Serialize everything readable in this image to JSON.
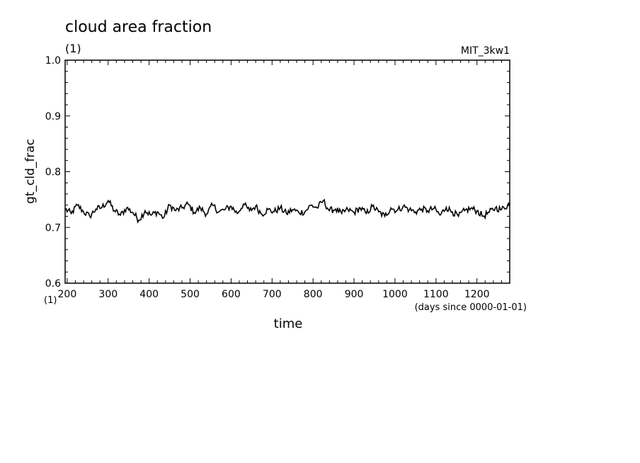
{
  "chart_data": {
    "type": "line",
    "title": "cloud area fraction",
    "units_label": "(1)",
    "dataset_label": "MIT_3kw1",
    "ylabel": "gt_cld_frac",
    "xlabel": "time",
    "x_units": "(days since 0000-01-01)",
    "x_units_short": "(1)",
    "xlim": [
      195,
      1280
    ],
    "ylim": [
      0.6,
      1.0
    ],
    "x_ticks": [
      200,
      300,
      400,
      500,
      600,
      700,
      800,
      900,
      1000,
      1100,
      1200
    ],
    "y_ticks": [
      0.6,
      0.7,
      0.8,
      0.9,
      1.0
    ],
    "y_tick_labels": [
      "0.6",
      "0.7",
      "0.8",
      "0.9",
      "1.0"
    ],
    "grid": false,
    "line_color": "#000000",
    "series": [
      {
        "x": [
          195,
          210,
          225,
          240,
          255,
          270,
          285,
          300,
          315,
          330,
          345,
          360,
          375,
          390,
          405,
          420,
          435,
          450,
          465,
          480,
          495,
          510,
          525,
          540,
          555,
          570,
          585,
          600,
          615,
          630,
          645,
          660,
          675,
          690,
          705,
          720,
          735,
          750,
          765,
          780,
          795,
          810,
          825,
          840,
          855,
          870,
          885,
          900,
          915,
          930,
          945,
          960,
          975,
          990,
          1005,
          1020,
          1035,
          1050,
          1065,
          1080,
          1095,
          1110,
          1125,
          1140,
          1155,
          1170,
          1185,
          1200,
          1215,
          1230,
          1245,
          1260,
          1275,
          1280
        ],
        "y": [
          0.733,
          0.725,
          0.74,
          0.728,
          0.72,
          0.733,
          0.736,
          0.748,
          0.73,
          0.722,
          0.735,
          0.727,
          0.713,
          0.73,
          0.722,
          0.728,
          0.717,
          0.74,
          0.73,
          0.735,
          0.742,
          0.727,
          0.735,
          0.724,
          0.74,
          0.728,
          0.732,
          0.738,
          0.725,
          0.742,
          0.73,
          0.738,
          0.724,
          0.732,
          0.728,
          0.735,
          0.725,
          0.732,
          0.727,
          0.728,
          0.74,
          0.735,
          0.748,
          0.73,
          0.733,
          0.725,
          0.732,
          0.727,
          0.735,
          0.725,
          0.738,
          0.728,
          0.72,
          0.735,
          0.73,
          0.738,
          0.732,
          0.728,
          0.733,
          0.73,
          0.734,
          0.722,
          0.736,
          0.728,
          0.72,
          0.73,
          0.734,
          0.73,
          0.72,
          0.727,
          0.735,
          0.732,
          0.74,
          0.745
        ]
      }
    ]
  }
}
